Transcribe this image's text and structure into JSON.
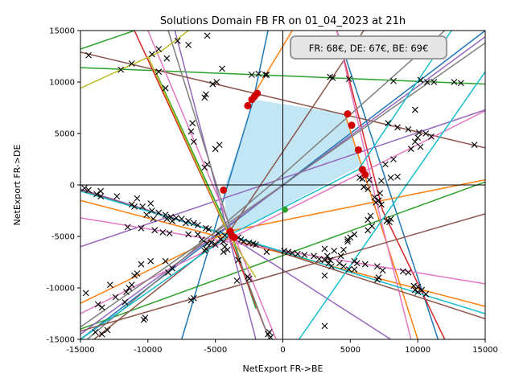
{
  "chart_data": {
    "type": "line",
    "title": "Solutions Domain FB FR on 01_04_2023 at 21h",
    "xlabel": "NetExport FR->BE",
    "ylabel": "NetExport FR->DE",
    "xlim": [
      -15000,
      15000
    ],
    "ylim": [
      -15000,
      15000
    ],
    "x_ticks": [
      "-15000",
      "-10000",
      "-5000",
      "0",
      "5000",
      "10000",
      "15000"
    ],
    "y_ticks": [
      "-15000",
      "-10000",
      "-5000",
      "0",
      "5000",
      "10000",
      "15000"
    ],
    "grid": false,
    "reference_lines": {
      "x": 0,
      "y": 0
    },
    "annotation": "FR: 68€, DE: 67€, BE: 69€",
    "domain_polygon": {
      "color": "#87ceeb",
      "vertices": [
        [
          -2100,
          8300
        ],
        [
          4600,
          6900
        ],
        [
          5800,
          1900
        ],
        [
          -4000,
          -4900
        ],
        [
          -4400,
          -500
        ]
      ]
    },
    "lines": [
      {
        "color": "#1f77b4",
        "points": [
          [
            -7500,
            -15000
          ],
          [
            -4200,
            -500
          ],
          [
            -2200,
            8200
          ],
          [
            -1100,
            15000
          ]
        ]
      },
      {
        "color": "#1f77b4",
        "points": [
          [
            4000,
            15000
          ],
          [
            11500,
            -15000
          ]
        ]
      },
      {
        "color": "#1f77b4",
        "points": [
          [
            -15000,
            -15000
          ],
          [
            15000,
            15000
          ]
        ]
      },
      {
        "color": "#ff7f0e",
        "points": [
          [
            -2700,
            7600
          ],
          [
            700,
            15000
          ]
        ]
      },
      {
        "color": "#ff7f0e",
        "points": [
          [
            4600,
            6900
          ],
          [
            10000,
            -15000
          ]
        ]
      },
      {
        "color": "#ff7f0e",
        "points": [
          [
            -15000,
            -11500
          ],
          [
            -4000,
            -4500
          ],
          [
            15000,
            500
          ]
        ]
      },
      {
        "color": "#ff7f0e",
        "points": [
          [
            -15000,
            -1500
          ],
          [
            15000,
            -11800
          ]
        ]
      },
      {
        "color": "#2ca02c",
        "points": [
          [
            -15000,
            11400
          ],
          [
            15000,
            9800
          ]
        ]
      },
      {
        "color": "#2ca02c",
        "points": [
          [
            -15000,
            13200
          ],
          [
            -11000,
            15000
          ]
        ]
      },
      {
        "color": "#2ca02c",
        "points": [
          [
            -9500,
            11200
          ],
          [
            -3800,
            -5000
          ],
          [
            -2000,
            -12000
          ]
        ]
      },
      {
        "color": "#2ca02c",
        "points": [
          [
            -15000,
            -14000
          ],
          [
            15000,
            300
          ]
        ]
      },
      {
        "color": "#d62728",
        "points": [
          [
            -11000,
            15000
          ],
          [
            -4100,
            -4600
          ],
          [
            -1000,
            -15000
          ]
        ]
      },
      {
        "color": "#d62728",
        "points": [
          [
            4000,
            15000
          ],
          [
            7400,
            -2500
          ],
          [
            12000,
            -15000
          ]
        ]
      },
      {
        "color": "#9467bd",
        "points": [
          [
            -15000,
            -14500
          ],
          [
            15000,
            14400
          ]
        ]
      },
      {
        "color": "#9467bd",
        "points": [
          [
            -15000,
            -6000
          ],
          [
            15000,
            7300
          ]
        ]
      },
      {
        "color": "#9467bd",
        "points": [
          [
            -8000,
            15000
          ],
          [
            -2000,
            -15000
          ]
        ]
      },
      {
        "color": "#9467bd",
        "points": [
          [
            -15000,
            -400
          ],
          [
            -4000,
            -4900
          ],
          [
            8000,
            -15000
          ]
        ]
      },
      {
        "color": "#8c564b",
        "points": [
          [
            -15000,
            12900
          ],
          [
            15000,
            3600
          ]
        ]
      },
      {
        "color": "#8c564b",
        "points": [
          [
            -14000,
            -15000
          ],
          [
            -4000,
            -4600
          ],
          [
            6000,
            15000
          ]
        ]
      },
      {
        "color": "#8c564b",
        "points": [
          [
            -15000,
            -500
          ],
          [
            -3800,
            -5000
          ],
          [
            15000,
            -13000
          ]
        ]
      },
      {
        "color": "#e377c2",
        "points": [
          [
            -15000,
            -3200
          ],
          [
            15000,
            -9600
          ]
        ]
      },
      {
        "color": "#e377c2",
        "points": [
          [
            -15000,
            -12500
          ],
          [
            15000,
            7200
          ]
        ]
      },
      {
        "color": "#e377c2",
        "points": [
          [
            -10000,
            15000
          ],
          [
            -3500,
            -5300
          ],
          [
            -500,
            -15000
          ]
        ]
      },
      {
        "color": "#e377c2",
        "points": [
          [
            4000,
            15000
          ],
          [
            7000,
            -2000
          ],
          [
            9500,
            -15000
          ]
        ]
      },
      {
        "color": "#7f7f7f",
        "points": [
          [
            -15000,
            -13800
          ],
          [
            15000,
            13800
          ]
        ]
      },
      {
        "color": "#7f7f7f",
        "points": [
          [
            -14500,
            -15000
          ],
          [
            0,
            1000
          ],
          [
            12000,
            15000
          ]
        ]
      },
      {
        "color": "#7f7f7f",
        "points": [
          [
            -8500,
            15000
          ],
          [
            -3000,
            -8000
          ],
          [
            -1000,
            -15000
          ]
        ]
      },
      {
        "color": "#bcbd22",
        "points": [
          [
            -15000,
            9400
          ],
          [
            -9000,
            13000
          ],
          [
            -7000,
            15000
          ]
        ]
      },
      {
        "color": "#bcbd22",
        "points": [
          [
            -10000,
            12500
          ],
          [
            -4000,
            -4800
          ],
          [
            -2000,
            -9000
          ]
        ]
      },
      {
        "color": "#17becf",
        "points": [
          [
            -15000,
            -600
          ],
          [
            -3700,
            -5000
          ],
          [
            15000,
            -12500
          ]
        ]
      },
      {
        "color": "#17becf",
        "points": [
          [
            1200,
            -15000
          ],
          [
            15000,
            11000
          ]
        ]
      },
      {
        "color": "#17becf",
        "points": [
          [
            -15000,
            -15000
          ],
          [
            -4000,
            -4900
          ],
          [
            5600,
            1500
          ],
          [
            12500,
            15000
          ]
        ]
      },
      {
        "color": "#8c564b",
        "points": [
          [
            -15000,
            -14200
          ],
          [
            15000,
            -2800
          ]
        ]
      }
    ],
    "optimum_points": {
      "color": "#d00000",
      "points": [
        [
          -2300,
          8300
        ],
        [
          -2100,
          8600
        ],
        [
          -1900,
          8900
        ],
        [
          -2600,
          7700
        ],
        [
          4800,
          6900
        ],
        [
          5100,
          5800
        ],
        [
          5600,
          3400
        ],
        [
          5900,
          1500
        ],
        [
          6100,
          1000
        ],
        [
          -4400,
          -500
        ],
        [
          -3900,
          -4500
        ],
        [
          -3800,
          -4900
        ],
        [
          -3600,
          -5100
        ]
      ]
    },
    "current_point": {
      "color": "#2ca02c",
      "point": [
        150,
        -2400
      ]
    },
    "intersection_points": [
      [
        -14400,
        12600
      ],
      [
        -12000,
        11200
      ],
      [
        -11200,
        11800
      ],
      [
        -9700,
        12700
      ],
      [
        -9200,
        13200
      ],
      [
        -8600,
        12300
      ],
      [
        -7800,
        14000
      ],
      [
        -7000,
        13600
      ],
      [
        -5600,
        14500
      ],
      [
        -9200,
        11000
      ],
      [
        -8700,
        9400
      ],
      [
        -6700,
        6000
      ],
      [
        -6800,
        5200
      ],
      [
        -6600,
        4200
      ],
      [
        -5600,
        2000
      ],
      [
        -5800,
        1700
      ],
      [
        -5000,
        3500
      ],
      [
        -4700,
        3900
      ],
      [
        -4900,
        10000
      ],
      [
        -5800,
        8500
      ],
      [
        -5700,
        8800
      ],
      [
        -5200,
        9800
      ],
      [
        -4500,
        11300
      ],
      [
        -2300,
        10700
      ],
      [
        -1800,
        10800
      ],
      [
        -1300,
        10700
      ],
      [
        -1200,
        10700
      ],
      [
        3700,
        10400
      ],
      [
        3500,
        10500
      ],
      [
        4900,
        10300
      ],
      [
        8200,
        10100
      ],
      [
        10200,
        10200
      ],
      [
        10700,
        10000
      ],
      [
        11200,
        10000
      ],
      [
        12700,
        10000
      ],
      [
        13200,
        9900
      ],
      [
        9800,
        7300
      ],
      [
        11000,
        4700
      ],
      [
        14200,
        3900
      ],
      [
        7800,
        6000
      ],
      [
        8500,
        5600
      ],
      [
        9300,
        5400
      ],
      [
        10100,
        5100
      ],
      [
        10600,
        5000
      ],
      [
        10000,
        4600
      ],
      [
        9800,
        4200
      ],
      [
        10200,
        3700
      ],
      [
        9500,
        3500
      ],
      [
        8200,
        2500
      ],
      [
        7600,
        2000
      ],
      [
        8000,
        700
      ],
      [
        8500,
        800
      ],
      [
        7300,
        400
      ],
      [
        5700,
        700
      ],
      [
        5900,
        600
      ],
      [
        6400,
        500
      ],
      [
        6000,
        -200
      ],
      [
        6300,
        -400
      ],
      [
        7200,
        -800
      ],
      [
        6800,
        -1200
      ],
      [
        7100,
        -1500
      ],
      [
        6900,
        -1700
      ],
      [
        7300,
        -1900
      ],
      [
        6500,
        -3000
      ],
      [
        6300,
        -3400
      ],
      [
        6600,
        -4000
      ],
      [
        6300,
        -4400
      ],
      [
        7700,
        -3500
      ],
      [
        7900,
        -3600
      ],
      [
        8000,
        -3300
      ],
      [
        5300,
        -4800
      ],
      [
        5000,
        -5100
      ],
      [
        4800,
        -5300
      ],
      [
        4800,
        -5500
      ],
      [
        4500,
        -6300
      ],
      [
        4500,
        -7900
      ],
      [
        4900,
        -8200
      ],
      [
        4200,
        -7600
      ],
      [
        3600,
        -7900
      ],
      [
        3400,
        -7600
      ],
      [
        3500,
        -7300
      ],
      [
        3100,
        -7300
      ],
      [
        2700,
        -7200
      ],
      [
        2300,
        -6900
      ],
      [
        1600,
        -6800
      ],
      [
        1100,
        -6700
      ],
      [
        700,
        -6600
      ],
      [
        400,
        -6500
      ],
      [
        100,
        -6400
      ],
      [
        -1200,
        -6500
      ],
      [
        -2000,
        -5800
      ],
      [
        -2200,
        -5700
      ],
      [
        -2500,
        -5600
      ],
      [
        -3100,
        -5300
      ],
      [
        -2900,
        -5500
      ],
      [
        -3300,
        -5100
      ],
      [
        3800,
        -6400
      ],
      [
        3100,
        -6200
      ],
      [
        3300,
        -6900
      ],
      [
        4300,
        -6900
      ],
      [
        5300,
        -7400
      ],
      [
        5500,
        -7600
      ],
      [
        6100,
        -7700
      ],
      [
        7000,
        -7900
      ],
      [
        7000,
        -9200
      ],
      [
        7400,
        -8300
      ],
      [
        8900,
        -8400
      ],
      [
        9300,
        -8500
      ],
      [
        9700,
        -9800
      ],
      [
        10000,
        -9900
      ],
      [
        10300,
        -10200
      ],
      [
        10600,
        -10600
      ],
      [
        9800,
        -10200
      ],
      [
        10000,
        -10400
      ],
      [
        3100,
        -8800
      ],
      [
        3100,
        -13700
      ],
      [
        5300,
        -8200
      ],
      [
        7100,
        -9000
      ],
      [
        -14700,
        -300
      ],
      [
        -14400,
        -500
      ],
      [
        -13800,
        -900
      ],
      [
        -13500,
        -1100
      ],
      [
        -11200,
        -1900
      ],
      [
        -10400,
        -2100
      ],
      [
        -9700,
        -2500
      ],
      [
        -9200,
        -2700
      ],
      [
        -8700,
        -2900
      ],
      [
        -8300,
        -3100
      ],
      [
        -7900,
        -3200
      ],
      [
        -7500,
        -3300
      ],
      [
        -7000,
        -3500
      ],
      [
        -6600,
        -3700
      ],
      [
        -6300,
        -3900
      ],
      [
        -5700,
        -4200
      ],
      [
        -5500,
        -4300
      ],
      [
        -4800,
        -4700
      ],
      [
        -4300,
        -4900
      ],
      [
        -10100,
        -2900
      ],
      [
        -9600,
        -3300
      ],
      [
        -8600,
        -3300
      ],
      [
        -8200,
        -3500
      ],
      [
        -7200,
        -3700
      ],
      [
        -13500,
        -600
      ],
      [
        -12300,
        -1100
      ],
      [
        -10800,
        -1300
      ],
      [
        -9800,
        -1800
      ],
      [
        -11000,
        -2100
      ],
      [
        -11500,
        -4100
      ],
      [
        -10500,
        -4200
      ],
      [
        -9500,
        -4400
      ],
      [
        -8900,
        -4600
      ],
      [
        -8400,
        -4700
      ],
      [
        -7000,
        -4800
      ],
      [
        -6300,
        -4800
      ],
      [
        -6000,
        -5300
      ],
      [
        -5600,
        -5700
      ],
      [
        -5000,
        -5800
      ],
      [
        -4600,
        -5300
      ],
      [
        -4400,
        -5500
      ],
      [
        -14600,
        -10500
      ],
      [
        -13700,
        -11600
      ],
      [
        -13400,
        -11900
      ],
      [
        -12800,
        -9700
      ],
      [
        -11600,
        -10400
      ],
      [
        -11400,
        -10000
      ],
      [
        -11200,
        -9700
      ],
      [
        -11000,
        -8800
      ],
      [
        -10800,
        -8600
      ],
      [
        -10500,
        -7700
      ],
      [
        -9800,
        -7400
      ],
      [
        -8700,
        -7400
      ],
      [
        -8200,
        -8100
      ],
      [
        -8500,
        -8500
      ],
      [
        -6600,
        -11000
      ],
      [
        -6800,
        -11200
      ],
      [
        -5700,
        -6200
      ],
      [
        -5800,
        -6400
      ],
      [
        -5300,
        -5600
      ],
      [
        -12400,
        -10900
      ],
      [
        -11700,
        -11400
      ],
      [
        -10200,
        -12900
      ],
      [
        -10300,
        -13100
      ],
      [
        -13900,
        -14300
      ],
      [
        -13400,
        -14500
      ],
      [
        -13000,
        -14100
      ],
      [
        -3300,
        -7300
      ],
      [
        -3400,
        -9300
      ],
      [
        -2600,
        -8900
      ],
      [
        -2500,
        -9100
      ],
      [
        -1000,
        -14300
      ],
      [
        -900,
        -14800
      ],
      [
        -1100,
        -14500
      ],
      [
        -4100,
        -6300
      ],
      [
        -4400,
        -6500
      ],
      [
        -4300,
        -6000
      ]
    ]
  }
}
